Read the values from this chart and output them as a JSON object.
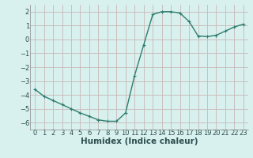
{
  "x": [
    0,
    1,
    2,
    3,
    4,
    5,
    6,
    7,
    8,
    9,
    10,
    11,
    12,
    13,
    14,
    15,
    16,
    17,
    18,
    19,
    20,
    21,
    22,
    23
  ],
  "y": [
    -3.6,
    -4.1,
    -4.4,
    -4.7,
    -5.0,
    -5.3,
    -5.55,
    -5.8,
    -5.9,
    -5.9,
    -5.3,
    -2.6,
    -0.4,
    1.8,
    2.0,
    2.0,
    1.9,
    1.3,
    0.25,
    0.2,
    0.3,
    0.6,
    0.9,
    1.1
  ],
  "line_color": "#2e7d6e",
  "marker": "+",
  "marker_size": 3,
  "bg_color": "#d8f0ee",
  "grid_color": "#c8b8b8",
  "xlabel": "Humidex (Indice chaleur)",
  "xlim": [
    -0.5,
    23.5
  ],
  "ylim": [
    -6.5,
    2.5
  ],
  "yticks": [
    -6,
    -5,
    -4,
    -3,
    -2,
    -1,
    0,
    1,
    2
  ],
  "xticks": [
    0,
    1,
    2,
    3,
    4,
    5,
    6,
    7,
    8,
    9,
    10,
    11,
    12,
    13,
    14,
    15,
    16,
    17,
    18,
    19,
    20,
    21,
    22,
    23
  ],
  "tick_fontsize": 6,
  "xlabel_fontsize": 7.5,
  "line_width": 1.0,
  "spine_color": "#888888"
}
